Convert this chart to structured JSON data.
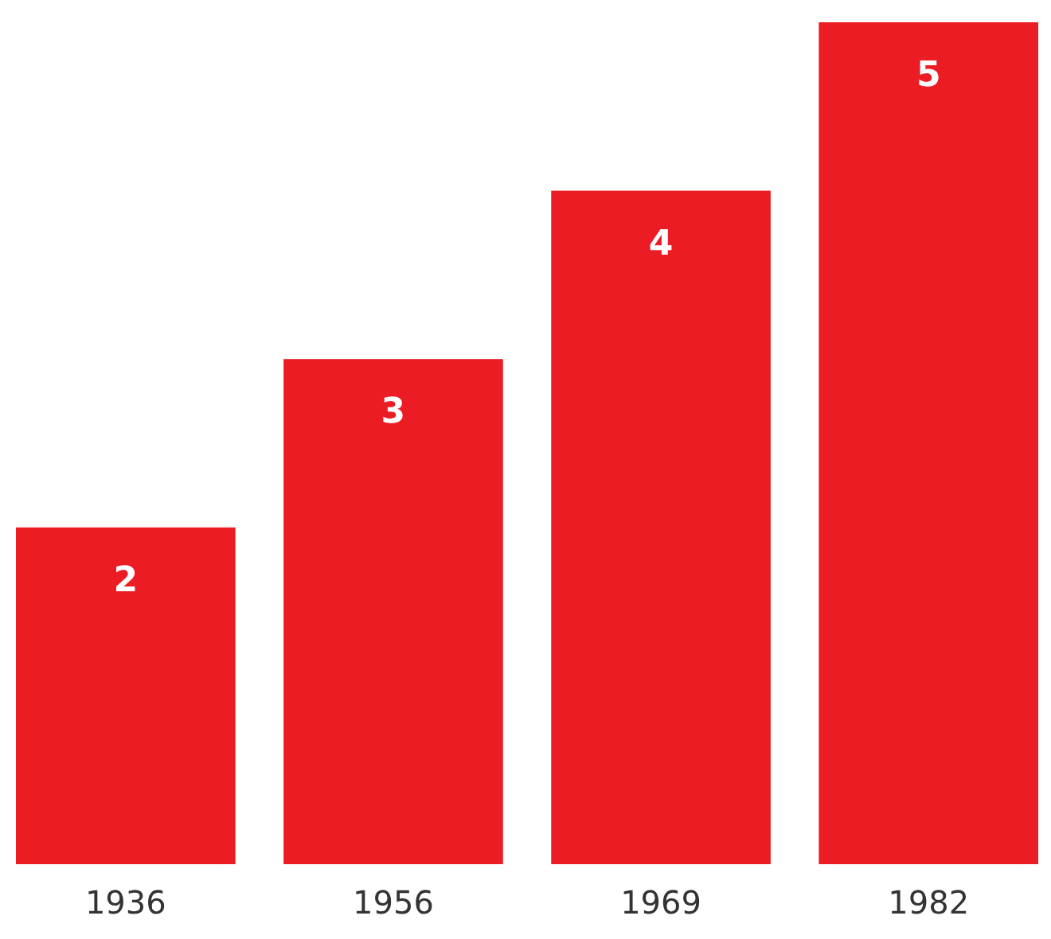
{
  "chart_data": {
    "type": "bar",
    "categories": [
      "1936",
      "1956",
      "1969",
      "1982"
    ],
    "values": [
      2,
      3,
      4,
      5
    ],
    "color": "#ec1c24",
    "data_labels": true,
    "grid": false
  }
}
